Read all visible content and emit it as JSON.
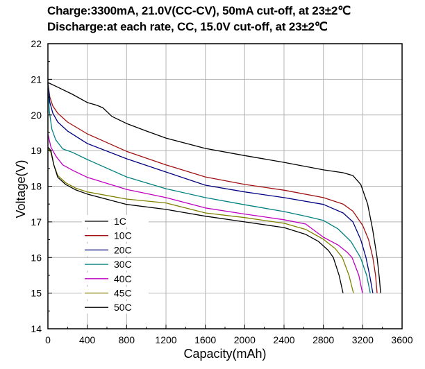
{
  "chart_data": {
    "type": "line",
    "title": "Charge:3300mA, 21.0V(CC-CV), 50mA cut-off, at 23±2℃",
    "subtitle": "Discharge:at each rate, CC, 15.0V cut-off, at 23±2℃",
    "xlabel": "Capacity(mAh)",
    "ylabel": "Voltage(V)",
    "xlim": [
      0,
      3600
    ],
    "ylim": [
      14,
      22
    ],
    "xticks": [
      0,
      400,
      800,
      1200,
      1600,
      2000,
      2400,
      2800,
      3200,
      3600
    ],
    "yticks": [
      14,
      15,
      16,
      17,
      18,
      19,
      20,
      21,
      22
    ],
    "xtick_labels": [
      "0",
      "400",
      "800",
      "1200",
      "1600",
      "2000",
      "2400",
      "2800",
      "3200",
      "3600"
    ],
    "ytick_labels": [
      "14",
      "15",
      "16",
      "17",
      "18",
      "19",
      "20",
      "21",
      "22"
    ],
    "grid": true,
    "legend_position": "bottom-left",
    "series": [
      {
        "name": "1C",
        "color": "#000000",
        "x": [
          0,
          100,
          250,
          400,
          500,
          560,
          650,
          800,
          1000,
          1200,
          1600,
          2000,
          2400,
          2800,
          3000,
          3100,
          3180,
          3250,
          3300,
          3346,
          3370,
          3382
        ],
        "y": [
          20.91,
          20.78,
          20.58,
          20.35,
          20.27,
          20.2,
          19.96,
          19.76,
          19.55,
          19.35,
          19.06,
          18.86,
          18.67,
          18.46,
          18.38,
          18.3,
          18.05,
          17.5,
          16.8,
          16.0,
          15.4,
          15.0
        ]
      },
      {
        "name": "10C",
        "color": "#a01010",
        "x": [
          0,
          20,
          50,
          100,
          200,
          400,
          800,
          1200,
          1600,
          2000,
          2400,
          2800,
          3000,
          3100,
          3200,
          3260,
          3303,
          3330,
          3346
        ],
        "y": [
          20.9,
          20.5,
          20.25,
          20.05,
          19.8,
          19.47,
          18.98,
          18.6,
          18.26,
          18.05,
          17.89,
          17.68,
          17.5,
          17.3,
          16.9,
          16.5,
          16.0,
          15.5,
          15.0
        ]
      },
      {
        "name": "20C",
        "color": "#000080",
        "x": [
          0,
          20,
          50,
          100,
          200,
          400,
          800,
          1200,
          1600,
          2000,
          2400,
          2800,
          3000,
          3100,
          3180,
          3233,
          3270,
          3303
        ],
        "y": [
          20.9,
          20.35,
          20.05,
          19.8,
          19.55,
          19.2,
          18.77,
          18.4,
          18.03,
          17.84,
          17.68,
          17.49,
          17.25,
          17.0,
          16.5,
          16.0,
          15.5,
          15.0
        ]
      },
      {
        "name": "30C",
        "color": "#008080",
        "x": [
          0,
          15,
          40,
          80,
          150,
          250,
          400,
          800,
          1200,
          1600,
          2000,
          2400,
          2620,
          2800,
          2950,
          3080,
          3177,
          3240,
          3277
        ],
        "y": [
          20.9,
          20.1,
          19.6,
          19.3,
          19.05,
          18.95,
          18.75,
          18.26,
          17.93,
          17.68,
          17.48,
          17.29,
          17.16,
          17.04,
          16.8,
          16.45,
          16.0,
          15.5,
          15.0
        ]
      },
      {
        "name": "40C",
        "color": "#c000c0",
        "x": [
          0,
          30,
          80,
          150,
          250,
          400,
          800,
          1200,
          1600,
          2000,
          2400,
          2620,
          2800,
          2950,
          3040,
          3092,
          3160,
          3198
        ],
        "y": [
          19.47,
          19.1,
          18.85,
          18.6,
          18.45,
          18.25,
          17.91,
          17.68,
          17.39,
          17.22,
          17.06,
          16.94,
          16.57,
          16.35,
          16.15,
          16.0,
          15.5,
          15.0
        ]
      },
      {
        "name": "45C",
        "color": "#808000",
        "x": [
          0,
          30,
          60,
          100,
          180,
          280,
          400,
          800,
          1200,
          1600,
          2000,
          2400,
          2620,
          2800,
          2920,
          2993,
          3060,
          3106
        ],
        "y": [
          19.05,
          18.95,
          18.6,
          18.3,
          18.1,
          17.95,
          17.84,
          17.64,
          17.53,
          17.25,
          17.12,
          16.96,
          16.79,
          16.51,
          16.25,
          16.0,
          15.5,
          15.0
        ]
      },
      {
        "name": "50C",
        "color": "#000000",
        "x": [
          0,
          30,
          60,
          100,
          180,
          280,
          400,
          800,
          1200,
          1600,
          2000,
          2400,
          2620,
          2750,
          2850,
          2901,
          2960,
          3000
        ],
        "y": [
          19.1,
          19.0,
          18.6,
          18.25,
          18.05,
          17.9,
          17.78,
          17.49,
          17.35,
          17.16,
          17.0,
          16.84,
          16.65,
          16.45,
          16.2,
          16.0,
          15.5,
          15.0
        ]
      }
    ]
  }
}
